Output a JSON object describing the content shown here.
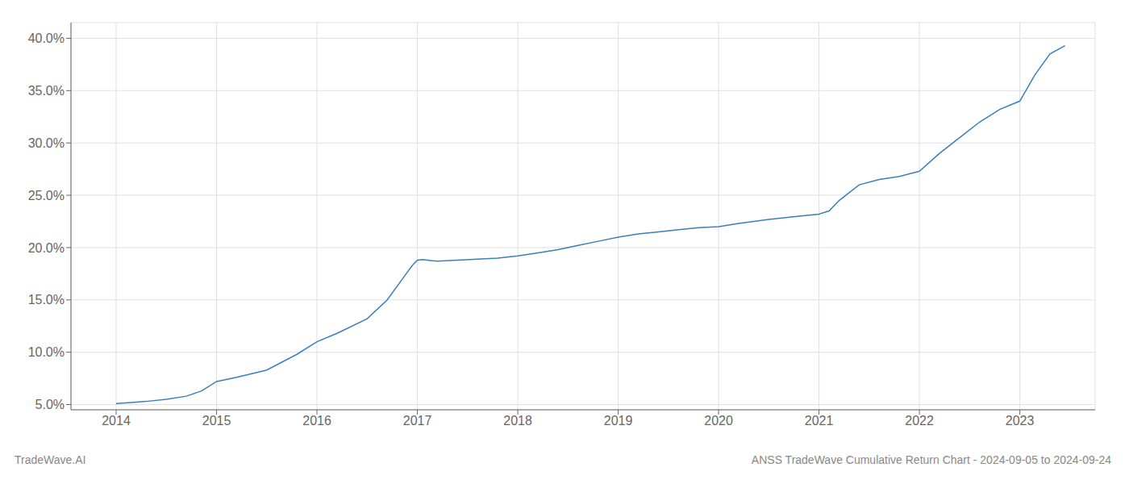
{
  "chart_data": {
    "type": "line",
    "title": "ANSS TradeWave Cumulative Return Chart - 2024-09-05 to 2024-09-24",
    "annotations": [
      "TradeWave.AI"
    ],
    "x": [
      2014.0,
      2014.15,
      2014.3,
      2014.5,
      2014.7,
      2014.85,
      2015.0,
      2015.2,
      2015.5,
      2015.8,
      2016.0,
      2016.2,
      2016.5,
      2016.7,
      2016.85,
      2016.95,
      2017.0,
      2017.05,
      2017.1,
      2017.15,
      2017.2,
      2017.4,
      2017.6,
      2017.8,
      2018.0,
      2018.2,
      2018.4,
      2018.6,
      2018.8,
      2019.0,
      2019.2,
      2019.4,
      2019.6,
      2019.8,
      2020.0,
      2020.2,
      2020.5,
      2020.8,
      2021.0,
      2021.1,
      2021.2,
      2021.4,
      2021.6,
      2021.8,
      2022.0,
      2022.2,
      2022.4,
      2022.6,
      2022.8,
      2023.0,
      2023.15,
      2023.3,
      2023.45
    ],
    "values": [
      5.1,
      5.2,
      5.3,
      5.5,
      5.8,
      6.3,
      7.2,
      7.6,
      8.3,
      9.8,
      11.0,
      11.8,
      13.2,
      15.0,
      17.0,
      18.3,
      18.8,
      18.85,
      18.8,
      18.75,
      18.7,
      18.8,
      18.9,
      19.0,
      19.2,
      19.5,
      19.8,
      20.2,
      20.6,
      21.0,
      21.3,
      21.5,
      21.7,
      21.9,
      22.0,
      22.3,
      22.7,
      23.0,
      23.2,
      23.5,
      24.5,
      26.0,
      26.5,
      26.8,
      27.3,
      29.0,
      30.5,
      32.0,
      33.2,
      34.0,
      36.5,
      38.5,
      39.3
    ],
    "color": "#3a7ebf",
    "marker": "none",
    "grid": true,
    "xlim": [
      2013.55,
      2023.75
    ],
    "xticks": [
      2014,
      2015,
      2016,
      2017,
      2018,
      2019,
      2020,
      2021,
      2022,
      2023
    ],
    "ylim": [
      4.5,
      41.5
    ],
    "yticks": [
      {
        "value": 5.0,
        "label": "5.0%"
      },
      {
        "value": 10.0,
        "label": "10.0%"
      },
      {
        "value": 15.0,
        "label": "15.0%"
      },
      {
        "value": 20.0,
        "label": "20.0%"
      },
      {
        "value": 25.0,
        "label": "25.0%"
      },
      {
        "value": 30.0,
        "label": "30.0%"
      },
      {
        "value": 35.0,
        "label": "35.0%"
      },
      {
        "value": 40.0,
        "label": "40.0%"
      }
    ]
  }
}
